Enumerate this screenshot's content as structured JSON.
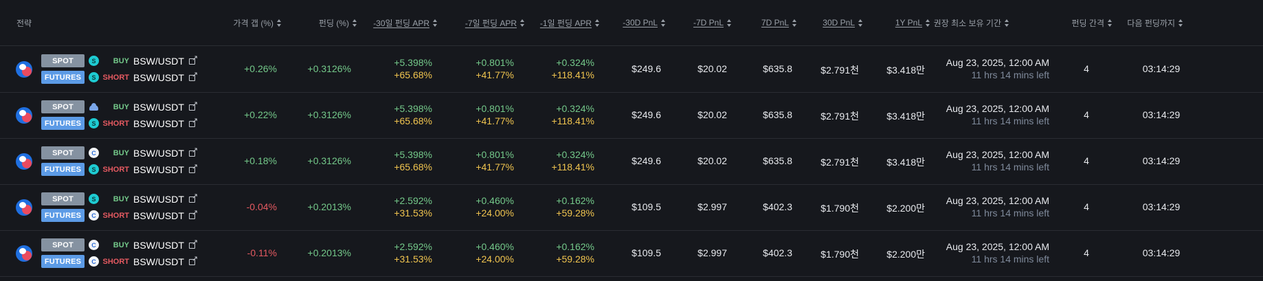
{
  "headers": {
    "strategy": "전략",
    "price_gap": "가격 갭 (%)",
    "funding": "펀딩 (%)",
    "apr30": "-30일 펀딩 APR",
    "apr7": "-7일 펀딩 APR",
    "apr1": "-1일 펀딩 APR",
    "pnl30_neg": "-30D PnL",
    "pnl7_neg": "-7D PnL",
    "pnl7": "7D PnL",
    "pnl30": "30D PnL",
    "pnl1y": "1Y PnL",
    "hold": "권장 최소 보유 기간",
    "interval": "펀딩 간격",
    "next": "다음 펀딩까지"
  },
  "rows": [
    {
      "spot_label": "SPOT",
      "spot_exchange_icon": "teal-s-icon",
      "spot_side": "BUY",
      "spot_pair": "BSW/USDT",
      "fut_label": "FUTURES",
      "fut_exchange_icon": "teal-s-icon",
      "fut_side": "SHORT",
      "fut_pair": "BSW/USDT",
      "gap": "+0.26%",
      "funding": "+0.3126%",
      "apr30_a": "+5.398%",
      "apr30_b": "+65.68%",
      "apr7_a": "+0.801%",
      "apr7_b": "+41.77%",
      "apr1_a": "+0.324%",
      "apr1_b": "+118.41%",
      "pnl30_neg": "$249.6",
      "pnl7_neg": "$20.02",
      "pnl7": "$635.8",
      "pnl30": "$2.791천",
      "pnl1y": "$3.418만",
      "hold_date": "Aug 23, 2025, 12:00 AM",
      "hold_left": "11 hrs 14 mins left",
      "interval": "4",
      "next": "03:14:29"
    },
    {
      "spot_label": "SPOT",
      "spot_exchange_icon": "cloud-icon",
      "spot_side": "BUY",
      "spot_pair": "BSW/USDT",
      "fut_label": "FUTURES",
      "fut_exchange_icon": "teal-s-icon",
      "fut_side": "SHORT",
      "fut_pair": "BSW/USDT",
      "gap": "+0.22%",
      "funding": "+0.3126%",
      "apr30_a": "+5.398%",
      "apr30_b": "+65.68%",
      "apr7_a": "+0.801%",
      "apr7_b": "+41.77%",
      "apr1_a": "+0.324%",
      "apr1_b": "+118.41%",
      "pnl30_neg": "$249.6",
      "pnl7_neg": "$20.02",
      "pnl7": "$635.8",
      "pnl30": "$2.791천",
      "pnl1y": "$3.418만",
      "hold_date": "Aug 23, 2025, 12:00 AM",
      "hold_left": "11 hrs 14 mins left",
      "interval": "4",
      "next": "03:14:29"
    },
    {
      "spot_label": "SPOT",
      "spot_exchange_icon": "white-circle-icon",
      "spot_side": "BUY",
      "spot_pair": "BSW/USDT",
      "fut_label": "FUTURES",
      "fut_exchange_icon": "teal-s-icon",
      "fut_side": "SHORT",
      "fut_pair": "BSW/USDT",
      "gap": "+0.18%",
      "funding": "+0.3126%",
      "apr30_a": "+5.398%",
      "apr30_b": "+65.68%",
      "apr7_a": "+0.801%",
      "apr7_b": "+41.77%",
      "apr1_a": "+0.324%",
      "apr1_b": "+118.41%",
      "pnl30_neg": "$249.6",
      "pnl7_neg": "$20.02",
      "pnl7": "$635.8",
      "pnl30": "$2.791천",
      "pnl1y": "$3.418만",
      "hold_date": "Aug 23, 2025, 12:00 AM",
      "hold_left": "11 hrs 14 mins left",
      "interval": "4",
      "next": "03:14:29"
    },
    {
      "spot_label": "SPOT",
      "spot_exchange_icon": "teal-s-icon",
      "spot_side": "BUY",
      "spot_pair": "BSW/USDT",
      "fut_label": "FUTURES",
      "fut_exchange_icon": "white-circle-icon",
      "fut_side": "SHORT",
      "fut_pair": "BSW/USDT",
      "gap": "-0.04%",
      "funding": "+0.2013%",
      "apr30_a": "+2.592%",
      "apr30_b": "+31.53%",
      "apr7_a": "+0.460%",
      "apr7_b": "+24.00%",
      "apr1_a": "+0.162%",
      "apr1_b": "+59.28%",
      "pnl30_neg": "$109.5",
      "pnl7_neg": "$2.997",
      "pnl7": "$402.3",
      "pnl30": "$1.790천",
      "pnl1y": "$2.200만",
      "hold_date": "Aug 23, 2025, 12:00 AM",
      "hold_left": "11 hrs 14 mins left",
      "interval": "4",
      "next": "03:14:29"
    },
    {
      "spot_label": "SPOT",
      "spot_exchange_icon": "white-circle-icon",
      "spot_side": "BUY",
      "spot_pair": "BSW/USDT",
      "fut_label": "FUTURES",
      "fut_exchange_icon": "white-circle-icon",
      "fut_side": "SHORT",
      "fut_pair": "BSW/USDT",
      "gap": "-0.11%",
      "funding": "+0.2013%",
      "apr30_a": "+2.592%",
      "apr30_b": "+31.53%",
      "apr7_a": "+0.460%",
      "apr7_b": "+24.00%",
      "apr1_a": "+0.162%",
      "apr1_b": "+59.28%",
      "pnl30_neg": "$109.5",
      "pnl7_neg": "$2.997",
      "pnl7": "$402.3",
      "pnl30": "$1.790천",
      "pnl1y": "$2.200만",
      "hold_date": "Aug 23, 2025, 12:00 AM",
      "hold_left": "11 hrs 14 mins left",
      "interval": "4",
      "next": "03:14:29"
    }
  ],
  "colors": {
    "background": "#16181d",
    "positive": "#74c98a",
    "negative": "#e65a61",
    "annualized": "#f1c54f",
    "muted": "#7f8a9b"
  }
}
